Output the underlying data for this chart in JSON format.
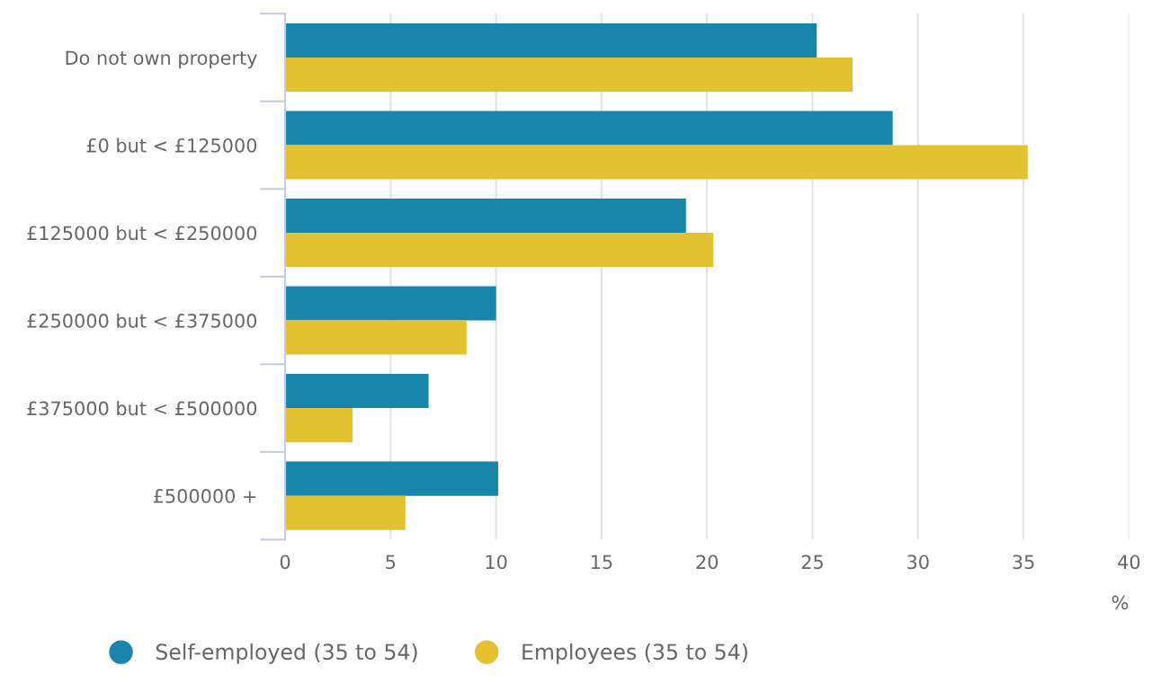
{
  "chart_data": {
    "type": "bar",
    "orientation": "horizontal",
    "xlabel": "%",
    "categories": [
      "Do not own property",
      "£0 but < £125000",
      "£125000 but < £250000",
      "£250000 but < £375000",
      "£375000 but < £500000",
      "£500000 +"
    ],
    "series": [
      {
        "name": "Self-employed (35 to 54)",
        "color": "#1a85ab",
        "values": [
          25.2,
          28.8,
          19.0,
          10.0,
          6.8,
          10.1
        ]
      },
      {
        "name": "Employees (35 to 54)",
        "color": "#e3c232",
        "values": [
          26.9,
          35.2,
          20.3,
          8.6,
          3.2,
          5.7
        ]
      }
    ],
    "xlim": [
      0,
      40
    ],
    "xticks": [
      0,
      5,
      10,
      15,
      20,
      25,
      30,
      35,
      40
    ],
    "grid": "x",
    "legend": "bottom"
  }
}
